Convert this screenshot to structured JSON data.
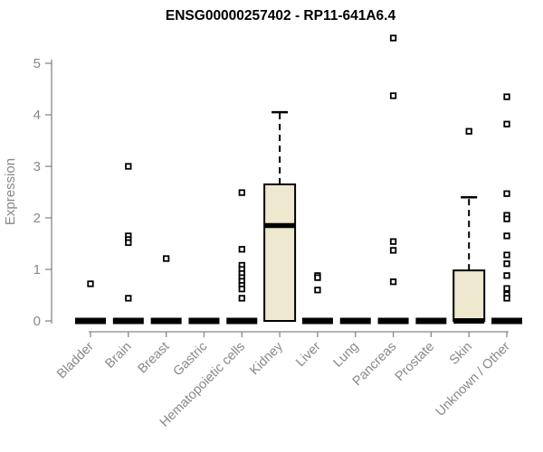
{
  "title": "ENSG00000257402 - RP11-641A6.4",
  "colors": {
    "box_fill": "#EDE8CE",
    "box_border": "#000000",
    "median": "#000000",
    "outlier_stroke": "#000000",
    "outlier_fill": "#ffffff",
    "axis": "#888888",
    "tick_text": "#888888",
    "title_text": "#000000",
    "background": "#ffffff"
  },
  "chart_data": {
    "type": "boxplot",
    "title": "ENSG00000257402 - RP11-641A6.4",
    "xlabel": "",
    "ylabel": "Expression",
    "ylim": [
      0,
      5
    ],
    "yticks": [
      0,
      1,
      2,
      3,
      4,
      5
    ],
    "grid": false,
    "legend": "none",
    "categories": [
      "Bladder",
      "Brain",
      "Breast",
      "Gastric",
      "Hematopoietic cells",
      "Kidney",
      "Liver",
      "Lung",
      "Pancreas",
      "Prostate",
      "Skin",
      "Unknown / Other"
    ],
    "series": [
      {
        "category": "Bladder",
        "q1": 0,
        "median": 0,
        "q3": 0,
        "whisker_low": 0,
        "whisker_high": 0,
        "outliers": [
          0.72
        ]
      },
      {
        "category": "Brain",
        "q1": 0,
        "median": 0,
        "q3": 0,
        "whisker_low": 0,
        "whisker_high": 0,
        "outliers": [
          3.0,
          1.65,
          1.58,
          1.52,
          0.44
        ]
      },
      {
        "category": "Breast",
        "q1": 0,
        "median": 0,
        "q3": 0,
        "whisker_low": 0,
        "whisker_high": 0,
        "outliers": [
          1.21
        ]
      },
      {
        "category": "Gastric",
        "q1": 0,
        "median": 0,
        "q3": 0,
        "whisker_low": 0,
        "whisker_high": 0,
        "outliers": []
      },
      {
        "category": "Hematopoietic cells",
        "q1": 0,
        "median": 0,
        "q3": 0,
        "whisker_low": 0,
        "whisker_high": 0,
        "outliers": [
          2.49,
          1.39,
          1.08,
          1.0,
          0.92,
          0.84,
          0.77,
          0.69,
          0.62,
          0.44
        ]
      },
      {
        "category": "Kidney",
        "q1": 0,
        "median": 1.85,
        "q3": 2.65,
        "whisker_low": 0,
        "whisker_high": 4.05,
        "outliers": []
      },
      {
        "category": "Liver",
        "q1": 0,
        "median": 0,
        "q3": 0,
        "whisker_low": 0,
        "whisker_high": 0,
        "outliers": [
          0.88,
          0.84,
          0.6
        ]
      },
      {
        "category": "Lung",
        "q1": 0,
        "median": 0,
        "q3": 0,
        "whisker_low": 0,
        "whisker_high": 0,
        "outliers": []
      },
      {
        "category": "Pancreas",
        "q1": 0,
        "median": 0,
        "q3": 0,
        "whisker_low": 0,
        "whisker_high": 0,
        "outliers": [
          5.49,
          4.37,
          1.54,
          1.37,
          0.76
        ]
      },
      {
        "category": "Prostate",
        "q1": 0,
        "median": 0,
        "q3": 0,
        "whisker_low": 0,
        "whisker_high": 0,
        "outliers": []
      },
      {
        "category": "Skin",
        "q1": 0,
        "median": 0,
        "q3": 0.98,
        "whisker_low": 0,
        "whisker_high": 2.4,
        "outliers": [
          3.68
        ]
      },
      {
        "category": "Unknown / Other",
        "q1": 0,
        "median": 0,
        "q3": 0,
        "whisker_low": 0,
        "whisker_high": 0,
        "outliers": [
          4.35,
          3.82,
          2.47,
          2.05,
          1.98,
          1.65,
          1.28,
          1.11,
          0.88,
          0.63,
          0.51,
          0.44
        ]
      }
    ]
  }
}
